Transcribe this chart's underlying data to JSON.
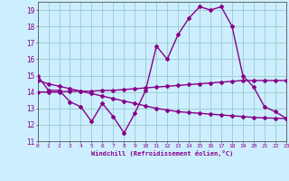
{
  "xlabel": "Windchill (Refroidissement éolien,°C)",
  "x": [
    0,
    1,
    2,
    3,
    4,
    5,
    6,
    7,
    8,
    9,
    10,
    11,
    12,
    13,
    14,
    15,
    16,
    17,
    18,
    19,
    20,
    21,
    22,
    23
  ],
  "line1": [
    15.0,
    14.1,
    14.1,
    13.4,
    13.1,
    12.2,
    13.3,
    12.5,
    11.5,
    12.7,
    14.1,
    16.8,
    16.0,
    17.5,
    18.5,
    19.2,
    19.0,
    19.2,
    18.0,
    15.0,
    14.3,
    13.1,
    12.8,
    12.4
  ],
  "line2": [
    14.0,
    14.0,
    14.0,
    14.05,
    14.05,
    14.05,
    14.1,
    14.1,
    14.15,
    14.2,
    14.25,
    14.3,
    14.35,
    14.4,
    14.45,
    14.5,
    14.55,
    14.6,
    14.65,
    14.7,
    14.7,
    14.7,
    14.7,
    14.7
  ],
  "line3": [
    14.7,
    14.5,
    14.35,
    14.2,
    14.05,
    13.9,
    13.75,
    13.6,
    13.45,
    13.3,
    13.15,
    13.0,
    12.9,
    12.8,
    12.75,
    12.7,
    12.65,
    12.6,
    12.55,
    12.5,
    12.45,
    12.42,
    12.4,
    12.38
  ],
  "line_color": "#880088",
  "bg_color": "#cceeff",
  "grid_color": "#99cccc",
  "ylim": [
    11,
    19.5
  ],
  "yticks": [
    11,
    12,
    13,
    14,
    15,
    16,
    17,
    18,
    19
  ],
  "xlim": [
    0,
    23
  ],
  "marker": "D",
  "markersize": 2.0,
  "linewidth": 1.0
}
